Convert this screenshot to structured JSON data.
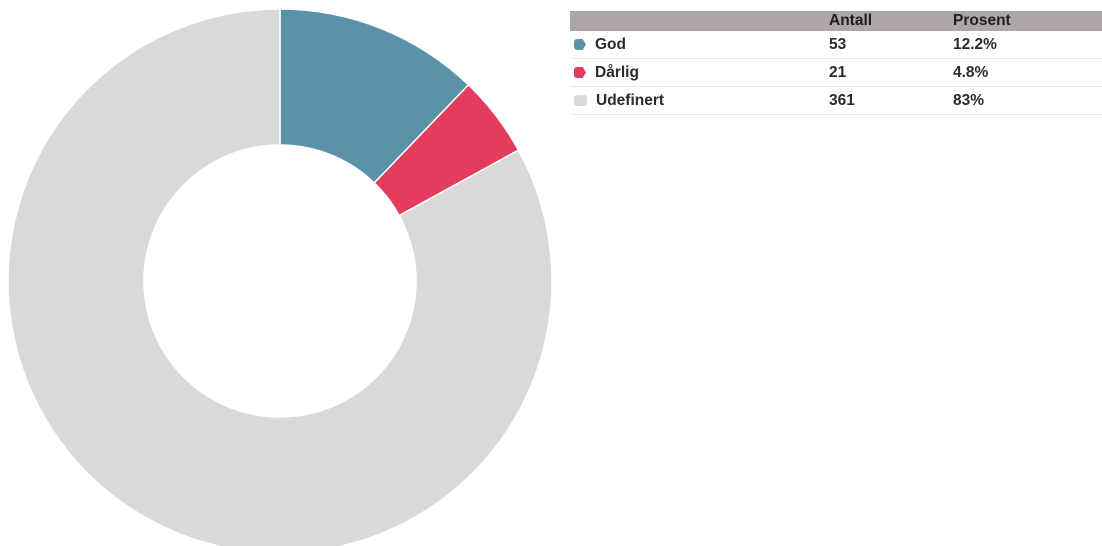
{
  "chart_data": {
    "type": "pie",
    "style": "donut",
    "categories": [
      "God",
      "Dårlig",
      "Udefinert"
    ],
    "values": [
      53,
      21,
      361
    ],
    "percents": [
      "12.2%",
      "4.8%",
      "83%"
    ],
    "colors": [
      "#5a92a9",
      "#e43c5c",
      "#d9d9d9"
    ],
    "title": ""
  },
  "table": {
    "headers": [
      "",
      "Antall",
      "Prosent"
    ],
    "header_bg": "#aea6a6",
    "rows": [
      {
        "name": "God",
        "count": "53",
        "percent": "12.2%",
        "color": "#5a92a9",
        "icon": "tag-icon"
      },
      {
        "name": "Dårlig",
        "count": "21",
        "percent": "4.8%",
        "color": "#e43c5c",
        "icon": "tag-icon"
      },
      {
        "name": "Udefinert",
        "count": "361",
        "percent": "83%",
        "color": "#d9d9d9",
        "icon": "square-icon"
      }
    ]
  }
}
